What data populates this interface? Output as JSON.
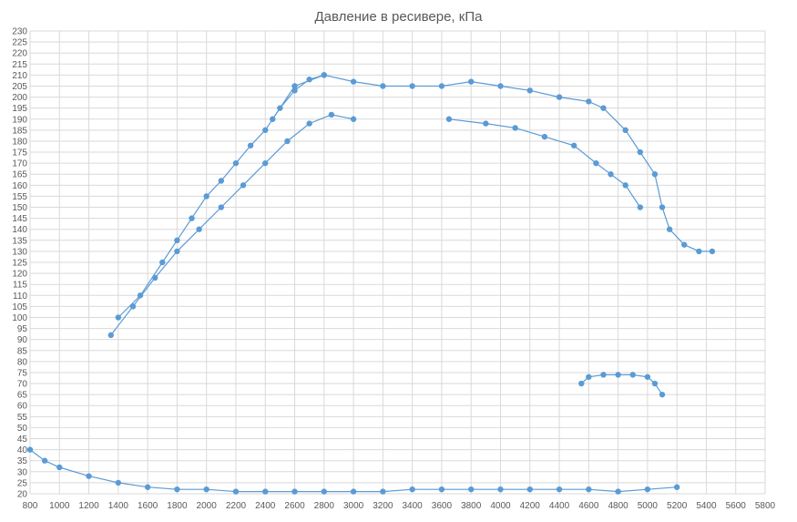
{
  "chart_data": {
    "type": "scatter",
    "title": "Давление в ресивере, кПа",
    "xlabel": "",
    "ylabel": "",
    "xlim": [
      800,
      5800
    ],
    "ylim": [
      20,
      230
    ],
    "x_ticks": [
      800,
      1000,
      1200,
      1400,
      1600,
      1800,
      2000,
      2200,
      2400,
      2600,
      2800,
      3000,
      3200,
      3400,
      3600,
      3800,
      4000,
      4200,
      4400,
      4600,
      4800,
      5000,
      5200,
      5400,
      5600,
      5800
    ],
    "y_ticks": [
      20,
      25,
      30,
      35,
      40,
      45,
      50,
      55,
      60,
      65,
      70,
      75,
      80,
      85,
      90,
      95,
      100,
      105,
      110,
      115,
      120,
      125,
      130,
      135,
      140,
      145,
      150,
      155,
      160,
      165,
      170,
      175,
      180,
      185,
      190,
      195,
      200,
      205,
      210,
      215,
      220,
      225,
      230
    ],
    "grid": true,
    "legend": "none",
    "color": "#5b9bd5",
    "series": [
      {
        "name": "",
        "style": "lines+markers",
        "points": [
          [
            2450,
            190
          ],
          [
            2600,
            205
          ],
          [
            2800,
            210
          ],
          [
            3000,
            207
          ],
          [
            3200,
            205
          ],
          [
            3400,
            205
          ],
          [
            3600,
            205
          ],
          [
            3800,
            207
          ],
          [
            4000,
            205
          ],
          [
            4200,
            203
          ],
          [
            4400,
            200
          ],
          [
            4600,
            198
          ],
          [
            4700,
            195
          ],
          [
            4850,
            185
          ],
          [
            4950,
            175
          ],
          [
            5050,
            165
          ],
          [
            5100,
            150
          ],
          [
            5150,
            140
          ],
          [
            5250,
            133
          ],
          [
            5350,
            130
          ],
          [
            5440,
            130
          ]
        ]
      },
      {
        "name": "",
        "style": "lines+markers",
        "points": [
          [
            4550,
            70
          ],
          [
            4600,
            73
          ],
          [
            4700,
            74
          ],
          [
            4800,
            74
          ],
          [
            4900,
            74
          ],
          [
            5000,
            73
          ],
          [
            5050,
            70
          ],
          [
            5100,
            65
          ]
        ]
      },
      {
        "name": "",
        "style": "lines+markers",
        "points": [
          [
            1400,
            100
          ],
          [
            1550,
            110
          ],
          [
            1700,
            125
          ],
          [
            1800,
            135
          ],
          [
            1900,
            145
          ],
          [
            2000,
            155
          ],
          [
            2100,
            162
          ],
          [
            2200,
            170
          ],
          [
            2300,
            178
          ],
          [
            2400,
            185
          ],
          [
            2500,
            195
          ],
          [
            2600,
            203
          ],
          [
            2700,
            208
          ],
          [
            2800,
            210
          ]
        ]
      },
      {
        "name": "",
        "style": "lines+markers",
        "points": [
          [
            1350,
            92
          ],
          [
            1500,
            105
          ],
          [
            1650,
            118
          ],
          [
            1800,
            130
          ],
          [
            1950,
            140
          ],
          [
            2100,
            150
          ],
          [
            2250,
            160
          ],
          [
            2400,
            170
          ],
          [
            2550,
            180
          ],
          [
            2700,
            188
          ],
          [
            2850,
            192
          ],
          [
            3000,
            190
          ]
        ]
      },
      {
        "name": "",
        "style": "lines+markers",
        "points": [
          [
            3650,
            190
          ],
          [
            3900,
            188
          ],
          [
            4100,
            186
          ],
          [
            4300,
            182
          ],
          [
            4500,
            178
          ],
          [
            4650,
            170
          ],
          [
            4750,
            165
          ],
          [
            4850,
            160
          ],
          [
            4950,
            150
          ]
        ]
      },
      {
        "name": "",
        "style": "lines+markers",
        "points": [
          [
            800,
            40
          ],
          [
            900,
            35
          ],
          [
            1000,
            32
          ],
          [
            1200,
            28
          ],
          [
            1400,
            25
          ],
          [
            1600,
            23
          ],
          [
            1800,
            22
          ],
          [
            2000,
            22
          ],
          [
            2200,
            21
          ],
          [
            2400,
            21
          ],
          [
            2600,
            21
          ],
          [
            2800,
            21
          ],
          [
            3000,
            21
          ],
          [
            3200,
            21
          ],
          [
            3400,
            22
          ],
          [
            3600,
            22
          ],
          [
            3800,
            22
          ],
          [
            4000,
            22
          ],
          [
            4200,
            22
          ],
          [
            4400,
            22
          ],
          [
            4600,
            22
          ],
          [
            4800,
            21
          ],
          [
            5000,
            22
          ],
          [
            5200,
            23
          ]
        ]
      }
    ]
  }
}
